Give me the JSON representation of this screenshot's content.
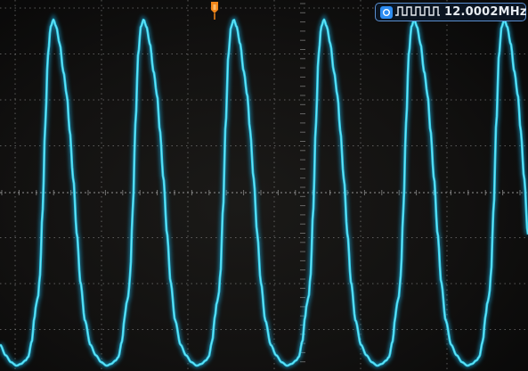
{
  "frequency_readout": {
    "value": "12.0002MHz",
    "icon": "square-wave-icon",
    "channel_indicator": "channel-badge-icon",
    "border_color": "#5a8fd0",
    "badge_color": "#2d8cf0"
  },
  "trigger_marker": {
    "icon": "trigger-position-marker-icon",
    "color": "#f0861a"
  },
  "display": {
    "grid": true,
    "horizontal_divisions": 8,
    "vertical_divisions": 6,
    "grid_color": "#9a9a9a",
    "background_color": "#121110",
    "trace_color": "#2fd3ee",
    "glow_color": "#1aa7d8"
  }
}
